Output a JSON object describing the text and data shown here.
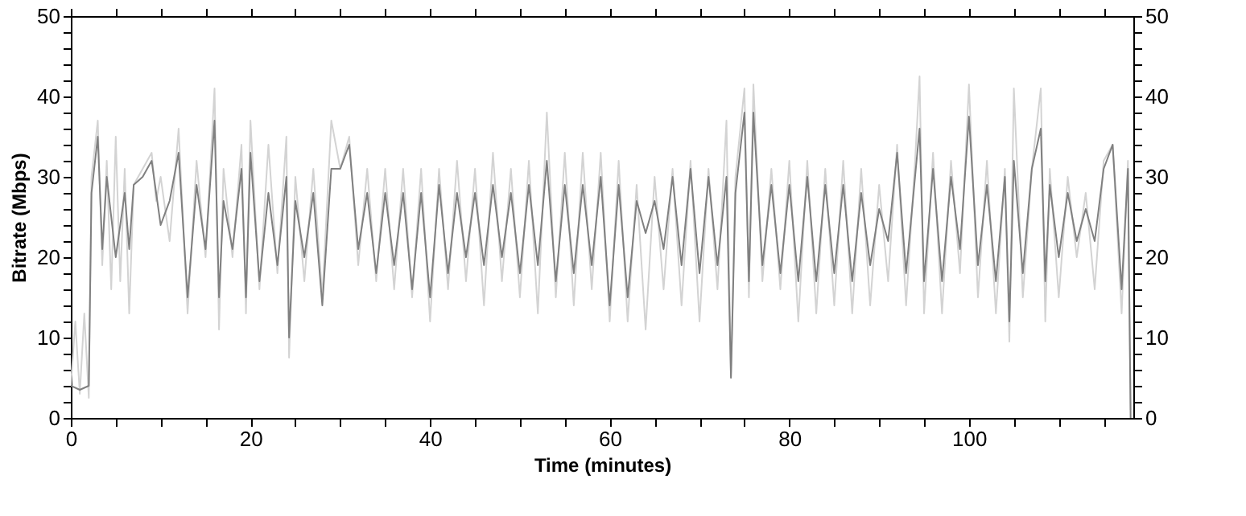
{
  "chart_data": {
    "type": "line",
    "xlabel": "Time (minutes)",
    "ylabel": "Bitrate (Mbps)",
    "grid": false,
    "marker": "none",
    "line_style": "solid",
    "xlim": [
      0,
      118.3
    ],
    "ylim": [
      0,
      50
    ],
    "y2lim": [
      0,
      50
    ],
    "xticks": [
      0,
      {
        "value": 5,
        "label": null
      },
      {
        "value": 10,
        "label": null
      },
      {
        "value": 15,
        "label": null
      },
      20,
      {
        "value": 25,
        "label": null
      },
      {
        "value": 30,
        "label": null
      },
      {
        "value": 35,
        "label": null
      },
      40,
      {
        "value": 45,
        "label": null
      },
      {
        "value": 50,
        "label": null
      },
      {
        "value": 55,
        "label": null
      },
      60,
      {
        "value": 65,
        "label": null
      },
      {
        "value": 70,
        "label": null
      },
      {
        "value": 75,
        "label": null
      },
      80,
      {
        "value": 85,
        "label": null
      },
      {
        "value": 90,
        "label": null
      },
      {
        "value": 95,
        "label": null
      },
      100,
      {
        "value": 105,
        "label": null
      },
      {
        "value": 110,
        "label": null
      },
      {
        "value": 115,
        "label": null
      }
    ],
    "yticks": [
      0,
      {
        "value": 2,
        "label": null
      },
      {
        "value": 4,
        "label": null
      },
      {
        "value": 6,
        "label": null
      },
      {
        "value": 8,
        "label": null
      },
      10,
      {
        "value": 12,
        "label": null
      },
      {
        "value": 14,
        "label": null
      },
      {
        "value": 16,
        "label": null
      },
      {
        "value": 18,
        "label": null
      },
      20,
      {
        "value": 22,
        "label": null
      },
      {
        "value": 24,
        "label": null
      },
      {
        "value": 26,
        "label": null
      },
      {
        "value": 28,
        "label": null
      },
      30,
      {
        "value": 32,
        "label": null
      },
      {
        "value": 34,
        "label": null
      },
      {
        "value": 36,
        "label": null
      },
      {
        "value": 38,
        "label": null
      },
      40,
      {
        "value": 42,
        "label": null
      },
      {
        "value": 44,
        "label": null
      },
      {
        "value": 46,
        "label": null
      },
      {
        "value": 48,
        "label": null
      },
      50
    ],
    "y2ticks": [
      0,
      {
        "value": 2,
        "label": null
      },
      {
        "value": 4,
        "label": null
      },
      {
        "value": 6,
        "label": null
      },
      {
        "value": 8,
        "label": null
      },
      10,
      {
        "value": 12,
        "label": null
      },
      {
        "value": 14,
        "label": null
      },
      {
        "value": 16,
        "label": null
      },
      {
        "value": 18,
        "label": null
      },
      20,
      {
        "value": 22,
        "label": null
      },
      {
        "value": 24,
        "label": null
      },
      {
        "value": 26,
        "label": null
      },
      {
        "value": 28,
        "label": null
      },
      30,
      {
        "value": 32,
        "label": null
      },
      {
        "value": 34,
        "label": null
      },
      {
        "value": 36,
        "label": null
      },
      {
        "value": 38,
        "label": null
      },
      40,
      {
        "value": 42,
        "label": null
      },
      {
        "value": 44,
        "label": null
      },
      {
        "value": 46,
        "label": null
      },
      {
        "value": 48,
        "label": null
      },
      50
    ],
    "series": [
      {
        "color": "#d3d3d3",
        "x": [
          0,
          0.5,
          1,
          1.5,
          2,
          2.3,
          3,
          3.5,
          4,
          4.5,
          5,
          5.5,
          6,
          6.5,
          7,
          8,
          9,
          9.5,
          10,
          11,
          12,
          13,
          14,
          15,
          16,
          16.5,
          17,
          18,
          19,
          19.5,
          20,
          21,
          22,
          23,
          24,
          24.3,
          25,
          26,
          27,
          28,
          29,
          30,
          31,
          32,
          33,
          34,
          35,
          36,
          37,
          38,
          39,
          40,
          41,
          42,
          43,
          44,
          45,
          46,
          47,
          48,
          49,
          50,
          51,
          52,
          53,
          54,
          55,
          56,
          57,
          58,
          59,
          60,
          61,
          62,
          63,
          64,
          65,
          66,
          67,
          68,
          69,
          70,
          71,
          72,
          73,
          73.5,
          74,
          75,
          75.5,
          76,
          77,
          78,
          79,
          80,
          81,
          82,
          83,
          84,
          85,
          86,
          87,
          88,
          89,
          90,
          91,
          92,
          93,
          94,
          94.5,
          95,
          96,
          97,
          98,
          99,
          100,
          101,
          102,
          103,
          104,
          104.5,
          105,
          106,
          107,
          108,
          108.5,
          109,
          110,
          111,
          112,
          113,
          114,
          115,
          116,
          117,
          117.7,
          118
        ],
        "values": [
          4,
          12,
          3,
          13,
          2.5,
          30,
          37,
          19,
          32,
          16,
          35,
          17,
          31,
          13,
          29,
          31,
          33,
          27,
          30,
          22,
          36,
          13,
          32,
          20,
          41,
          11,
          31,
          20,
          34,
          13,
          37,
          16,
          34,
          18,
          35,
          7.5,
          30,
          17,
          31,
          15,
          37,
          31,
          35,
          19,
          31,
          17,
          31,
          16,
          31,
          15,
          31,
          12,
          31,
          16,
          32,
          17,
          31,
          14,
          33,
          17,
          31,
          15,
          32,
          13,
          38,
          15,
          33,
          14,
          33,
          16,
          33,
          12,
          32,
          12,
          29,
          11,
          30,
          16,
          31,
          14,
          32,
          12,
          31,
          16,
          37,
          5,
          30,
          41,
          15,
          41.5,
          17,
          31,
          16,
          32,
          12,
          32,
          13,
          31,
          14,
          32,
          13,
          31,
          14,
          29,
          17,
          34,
          14,
          32,
          42.5,
          13,
          33,
          13,
          32,
          18,
          41.5,
          15,
          32,
          13,
          31,
          9.5,
          41,
          15,
          31,
          41,
          12,
          31,
          15,
          30,
          20,
          28,
          16,
          32,
          34,
          13,
          32,
          1
        ]
      },
      {
        "color": "#808080",
        "x": [
          0,
          1,
          2,
          2.3,
          3,
          3.5,
          4,
          5,
          6,
          6.5,
          7,
          8,
          9,
          10,
          11,
          12,
          13,
          14,
          15,
          16,
          16.5,
          17,
          18,
          19,
          19.5,
          20,
          21,
          22,
          23,
          24,
          24.3,
          25,
          26,
          27,
          28,
          29,
          30,
          31,
          32,
          33,
          34,
          35,
          36,
          37,
          38,
          39,
          40,
          41,
          42,
          43,
          44,
          45,
          46,
          47,
          48,
          49,
          50,
          51,
          52,
          53,
          54,
          55,
          56,
          57,
          58,
          59,
          60,
          61,
          62,
          63,
          64,
          65,
          66,
          67,
          68,
          69,
          70,
          71,
          72,
          73,
          73.5,
          74,
          75,
          75.5,
          76,
          77,
          78,
          79,
          80,
          81,
          82,
          83,
          84,
          85,
          86,
          87,
          88,
          89,
          90,
          91,
          92,
          93,
          94,
          94.5,
          95,
          96,
          97,
          98,
          99,
          100,
          101,
          102,
          103,
          104,
          104.5,
          105,
          106,
          107,
          108,
          108.5,
          109,
          110,
          111,
          112,
          113,
          114,
          115,
          116,
          117,
          117.7,
          118
        ],
        "values": [
          4,
          3.5,
          4,
          28,
          35,
          21,
          30,
          20,
          28,
          21,
          29,
          30,
          32,
          24,
          27,
          33,
          15,
          29,
          21,
          37,
          15,
          27,
          21,
          31,
          15,
          33,
          17,
          28,
          19,
          30,
          10,
          27,
          20,
          28,
          14,
          31,
          31,
          34,
          21,
          28,
          18,
          28,
          19,
          28,
          16,
          28,
          15,
          29,
          18,
          28,
          20,
          28,
          19,
          29,
          20,
          28,
          18,
          29,
          19,
          32,
          17,
          29,
          18,
          29,
          19,
          30,
          14,
          29,
          15,
          27,
          23,
          27,
          21,
          30,
          19,
          31,
          18,
          30,
          19,
          30,
          5,
          28,
          38,
          17,
          38,
          19,
          29,
          18,
          29,
          17,
          30,
          17,
          29,
          18,
          29,
          17,
          28,
          19,
          26,
          22,
          33,
          18,
          30,
          36,
          17,
          31,
          17,
          30,
          21,
          37.5,
          19,
          29,
          17,
          30,
          12,
          32,
          18,
          31,
          36,
          17,
          29,
          20,
          28,
          22,
          26,
          22,
          31,
          34,
          16,
          31,
          0
        ]
      }
    ]
  }
}
